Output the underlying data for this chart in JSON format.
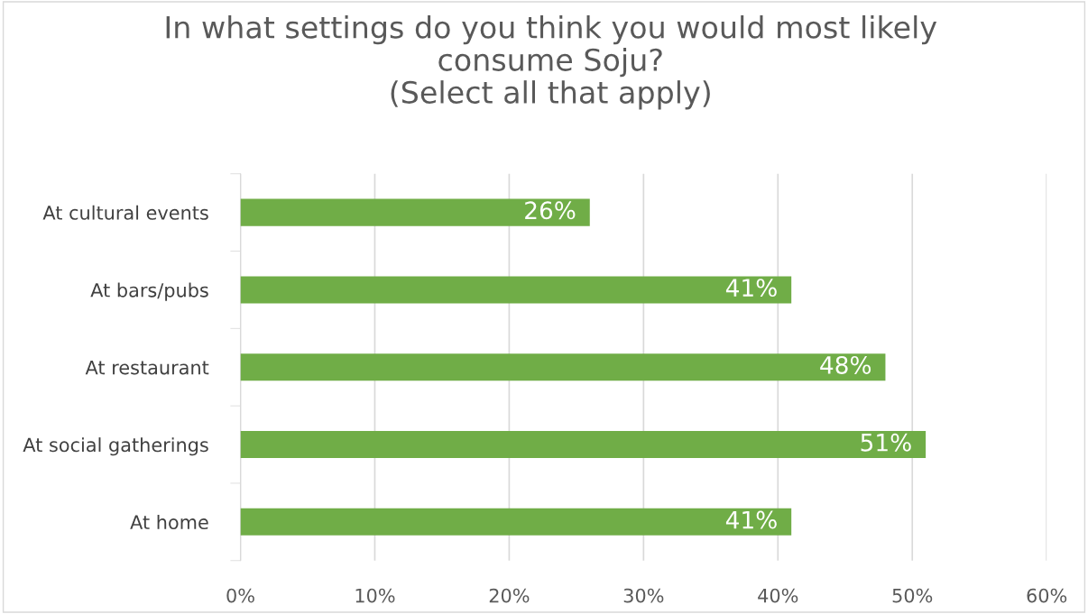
{
  "chart_data": {
    "type": "bar",
    "orientation": "horizontal",
    "title": "In what settings do you think you would most likely\nconsume Soju?\n(Select all that apply)",
    "categories": [
      "At cultural events",
      "At bars/pubs",
      "At restaurant",
      "At social gatherings",
      "At home"
    ],
    "values": [
      26,
      41,
      48,
      51,
      41
    ],
    "color": "#70ad47",
    "value_labels": [
      "26%",
      "41%",
      "48%",
      "51%",
      "41%"
    ],
    "xlim": [
      0,
      60
    ],
    "xticks": [
      {
        "value": 0,
        "label": "0%"
      },
      {
        "value": 10,
        "label": "10%"
      },
      {
        "value": 20,
        "label": "20%"
      },
      {
        "value": 30,
        "label": "30%"
      },
      {
        "value": 40,
        "label": "40%"
      },
      {
        "value": 50,
        "label": "50%"
      },
      {
        "value": 60,
        "label": "60%"
      }
    ],
    "grid": "x",
    "legend": false
  }
}
